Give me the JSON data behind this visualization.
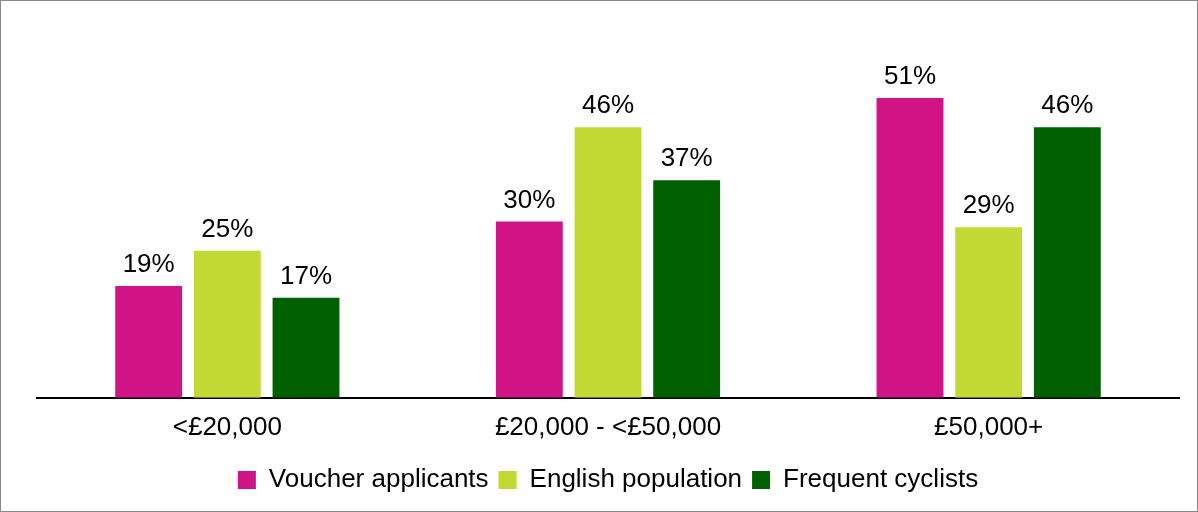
{
  "chart_data": {
    "type": "bar",
    "categories": [
      "<£20,000",
      "£20,000 - <£50,000",
      "£50,000+"
    ],
    "series": [
      {
        "name": "Voucher applicants",
        "color": "#d01486",
        "values": [
          19,
          30,
          51
        ],
        "value_labels": [
          "19%",
          "30%",
          "51%"
        ]
      },
      {
        "name": "English population",
        "color": "#c3d933",
        "values": [
          25,
          46,
          29
        ],
        "value_labels": [
          "25%",
          "46%",
          "29%"
        ]
      },
      {
        "name": "Frequent cyclists",
        "color": "#006000",
        "values": [
          17,
          37,
          46
        ],
        "value_labels": [
          "17%",
          "37%",
          "46%"
        ]
      }
    ],
    "grid": false,
    "legend": "bottom",
    "tick_labels": "x"
  }
}
